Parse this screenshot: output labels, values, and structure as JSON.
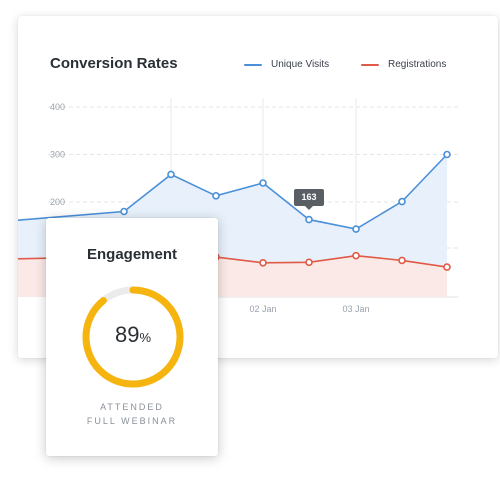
{
  "chart_card": {
    "title": "Conversion Rates",
    "legend": [
      {
        "label": "Unique Visits",
        "color": "#4a90d9"
      },
      {
        "label": "Registrations",
        "color": "#e05a47"
      }
    ]
  },
  "chart_data": {
    "type": "area",
    "title": "Conversion Rates",
    "y_ticks": [
      "400",
      "300",
      "200"
    ],
    "x_tick_labels": [
      "02 Jan",
      "03 Jan"
    ],
    "ylim": [
      0,
      400
    ],
    "grid": true,
    "legend_position": "top-right",
    "series": [
      {
        "name": "Unique Visits",
        "color": "#4a90d9",
        "values": [
          160,
          180,
          258,
          213,
          240,
          163,
          143,
          201,
          300
        ]
      },
      {
        "name": "Registrations",
        "color": "#e05a47",
        "values": [
          80,
          85,
          85,
          84,
          72,
          73,
          87,
          77,
          63
        ]
      }
    ],
    "tooltip": {
      "index": 5,
      "series": "Unique Visits",
      "label": "163"
    }
  },
  "engagement_card": {
    "title": "Engagement",
    "value": "89",
    "unit": "%",
    "progress": 0.89,
    "caption_line1": "ATTENDED",
    "caption_line2": "FULL WEBINAR",
    "ring_color": "#f6b50e",
    "track_color": "#ebebeb"
  }
}
